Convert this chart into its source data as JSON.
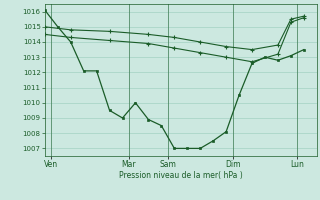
{
  "xlabel": "Pression niveau de la mer( hPa )",
  "ylim": [
    1006.5,
    1016.5
  ],
  "yticks": [
    1007,
    1008,
    1009,
    1010,
    1011,
    1012,
    1013,
    1014,
    1015,
    1016
  ],
  "bg_color": "#cce8e0",
  "grid_color_major": "#99ccbb",
  "grid_color_minor": "#bbddd5",
  "line_color": "#1a5c28",
  "day_labels": [
    "Ven",
    "Mar",
    "Sam",
    "Dim",
    "Lun"
  ],
  "day_positions": [
    0.5,
    6.5,
    9.5,
    14.5,
    19.5
  ],
  "xlim": [
    0,
    21
  ],
  "line1_x": [
    0,
    1,
    2,
    3,
    4,
    5,
    6,
    7,
    8,
    9,
    10,
    11,
    12,
    13,
    14,
    15,
    16,
    17,
    18,
    19,
    20
  ],
  "line1_y": [
    1016.1,
    1015.0,
    1014.0,
    1012.1,
    1012.1,
    1009.5,
    1009.0,
    1010.0,
    1008.9,
    1008.5,
    1007.0,
    1007.0,
    1007.0,
    1007.5,
    1008.1,
    1010.5,
    1012.6,
    1013.0,
    1012.8,
    1013.1,
    1013.5
  ],
  "line2_x": [
    0,
    2,
    5,
    8,
    10,
    12,
    14,
    16,
    18,
    19,
    20
  ],
  "line2_y": [
    1015.0,
    1014.8,
    1014.7,
    1014.5,
    1014.3,
    1014.0,
    1013.7,
    1013.5,
    1013.8,
    1015.5,
    1015.7
  ],
  "line3_x": [
    0,
    2,
    5,
    8,
    10,
    12,
    14,
    16,
    18,
    19,
    20
  ],
  "line3_y": [
    1014.5,
    1014.3,
    1014.1,
    1013.9,
    1013.6,
    1013.3,
    1013.0,
    1012.7,
    1013.2,
    1015.3,
    1015.6
  ]
}
